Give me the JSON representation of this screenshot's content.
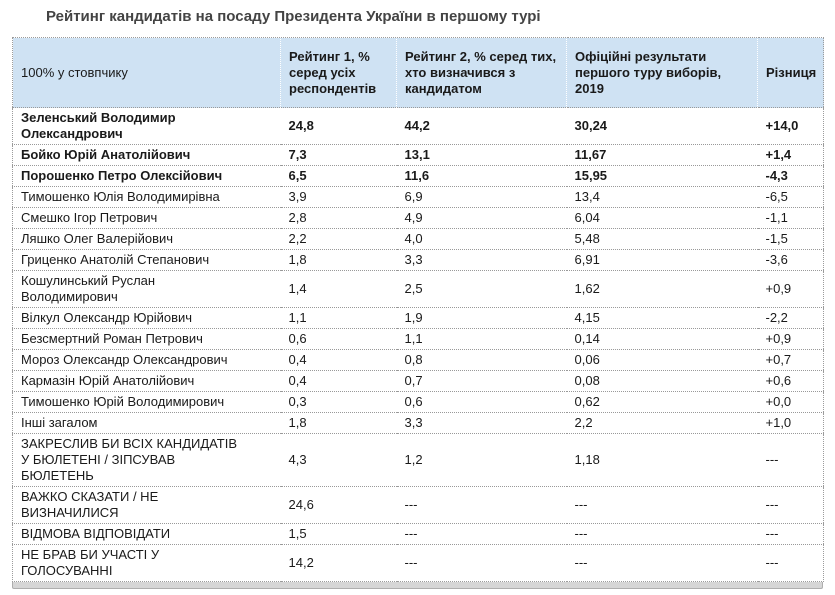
{
  "page": {
    "title": "Рейтинг кандидатів на посаду Президента України в першому турі"
  },
  "colors": {
    "header_bg": "#cfe2f3",
    "title_color": "#444444",
    "text_color": "#1a1a1a",
    "row_border": "#999999",
    "scrollbar_track": "#d6d6d6"
  },
  "chart_data": {
    "type": "table",
    "title": "Рейтинг кандидатів на посаду Президента України в першому турі",
    "corner_label": "100% у стовпчику",
    "columns": [
      "Рейтинг 1, % серед усіх респондентів",
      "Рейтинг 2, % серед тих, хто визначився з кандидатом",
      "Офіційні результати першого туру виборів, 2019",
      "Різниця"
    ],
    "rows": [
      {
        "name": "Зеленський Володимир Олександрович",
        "values": [
          "24,8",
          "44,2",
          "30,24",
          "+14,0"
        ],
        "bold": true
      },
      {
        "name": "Бойко Юрій Анатолійович",
        "values": [
          "7,3",
          "13,1",
          "11,67",
          "+1,4"
        ],
        "bold": true
      },
      {
        "name": "Порошенко Петро Олексійович",
        "values": [
          "6,5",
          "11,6",
          "15,95",
          "-4,3"
        ],
        "bold": true
      },
      {
        "name": "Тимошенко Юлія Володимирівна",
        "values": [
          "3,9",
          "6,9",
          "13,4",
          "-6,5"
        ],
        "bold": false
      },
      {
        "name": "Смешко Ігор Петрович",
        "values": [
          "2,8",
          "4,9",
          "6,04",
          "-1,1"
        ],
        "bold": false
      },
      {
        "name": "Ляшко Олег Валерійович",
        "values": [
          "2,2",
          "4,0",
          "5,48",
          "-1,5"
        ],
        "bold": false
      },
      {
        "name": "Гриценко Анатолій Степанович",
        "values": [
          "1,8",
          "3,3",
          "6,91",
          "-3,6"
        ],
        "bold": false
      },
      {
        "name": "Кошулинський Руслан Володимирович",
        "values": [
          "1,4",
          "2,5",
          "1,62",
          "+0,9"
        ],
        "bold": false
      },
      {
        "name": "Вілкул Олександр Юрійович",
        "values": [
          "1,1",
          "1,9",
          "4,15",
          "-2,2"
        ],
        "bold": false
      },
      {
        "name": "Безсмертний Роман Петрович",
        "values": [
          "0,6",
          "1,1",
          "0,14",
          "+0,9"
        ],
        "bold": false
      },
      {
        "name": "Мороз Олександр Олександрович",
        "values": [
          "0,4",
          "0,8",
          "0,06",
          "+0,7"
        ],
        "bold": false
      },
      {
        "name": "Кармазін Юрій Анатолійович",
        "values": [
          "0,4",
          "0,7",
          "0,08",
          "+0,6"
        ],
        "bold": false
      },
      {
        "name": "Тимошенко Юрій Володимирович",
        "values": [
          "0,3",
          "0,6",
          "0,62",
          "+0,0"
        ],
        "bold": false
      },
      {
        "name": "Інші загалом",
        "values": [
          "1,8",
          "3,3",
          "2,2",
          "+1,0"
        ],
        "bold": false
      },
      {
        "name": "ЗАКРЕСЛИВ БИ ВСІХ КАНДИДАТІВ У БЮЛЕТЕНІ / ЗІПСУВАВ БЮЛЕТЕНЬ",
        "values": [
          "4,3",
          "1,2",
          "1,18",
          "---"
        ],
        "bold": false
      },
      {
        "name": "ВАЖКО СКАЗАТИ / НЕ ВИЗНАЧИЛИСЯ",
        "values": [
          "24,6",
          "---",
          "---",
          "---"
        ],
        "bold": false
      },
      {
        "name": "ВІДМОВА ВІДПОВІДАТИ",
        "values": [
          "1,5",
          "---",
          "---",
          "---"
        ],
        "bold": false
      },
      {
        "name": "НЕ БРАВ БИ УЧАСТІ У ГОЛОСУВАННІ",
        "values": [
          "14,2",
          "---",
          "---",
          "---"
        ],
        "bold": false
      }
    ]
  }
}
